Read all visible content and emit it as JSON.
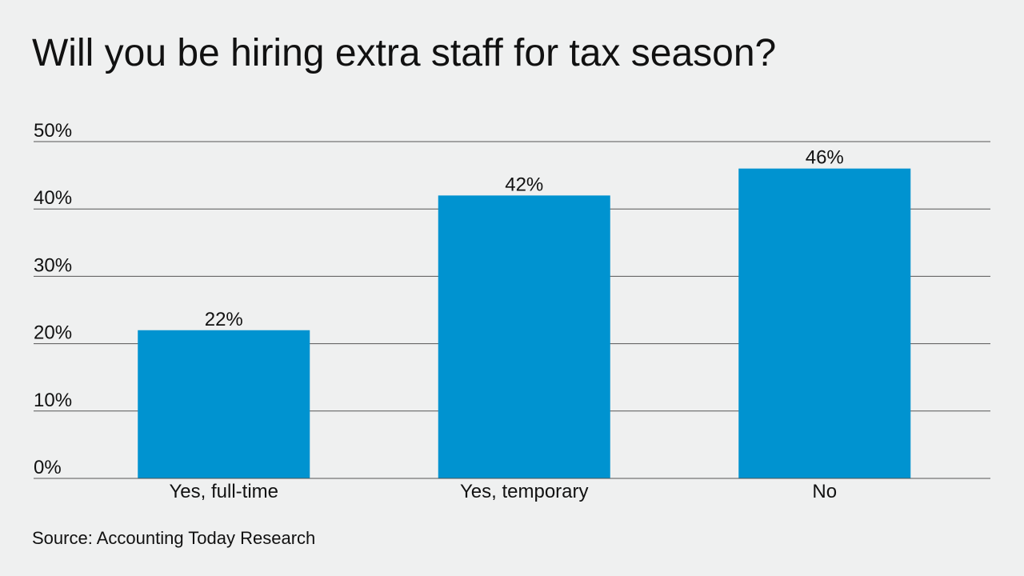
{
  "chart_data": {
    "type": "bar",
    "title": "Will you be hiring extra staff for tax season?",
    "source": "Source: Accounting Today Research",
    "categories": [
      "Yes, full-time",
      "Yes, temporary",
      "No"
    ],
    "values": [
      22,
      42,
      46
    ],
    "value_labels": [
      "22%",
      "42%",
      "46%"
    ],
    "color": "#0093d0",
    "ylim": [
      0,
      50
    ],
    "yticks": [
      {
        "value": 0,
        "label": "0%"
      },
      {
        "value": 10,
        "label": "10%"
      },
      {
        "value": 20,
        "label": "20%"
      },
      {
        "value": 30,
        "label": "30%"
      },
      {
        "value": 40,
        "label": "40%"
      },
      {
        "value": 50,
        "label": "50%"
      }
    ],
    "grid": true
  }
}
